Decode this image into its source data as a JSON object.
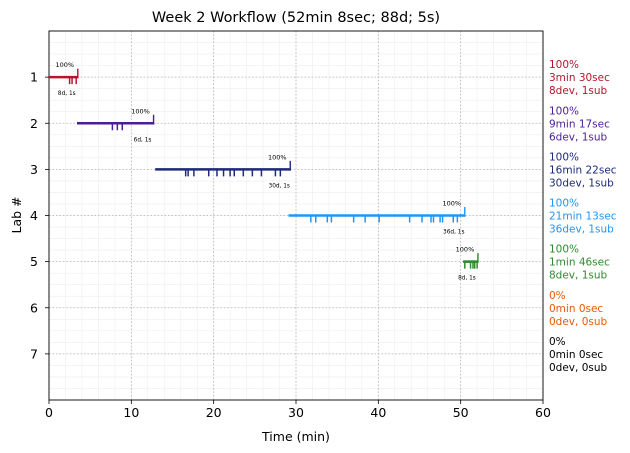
{
  "chart_data": {
    "type": "timeline",
    "title": "Week 2 Workflow (52min 8sec; 88d; 5s)",
    "xlabel": "Time (min)",
    "ylabel": "Lab #",
    "xlim": [
      0,
      60
    ],
    "ylim": [
      8,
      0
    ],
    "xticks": [
      0,
      10,
      20,
      30,
      40,
      50,
      60
    ],
    "yticks": [
      1,
      2,
      3,
      4,
      5,
      6,
      7
    ],
    "grid": true,
    "minor_grid": true,
    "labs": [
      {
        "lab": 1,
        "color": "#b2182b",
        "start": 0,
        "end": 3.5,
        "dev_times": [
          2.5,
          2.8,
          3.3
        ],
        "percent_label": "100%",
        "count_label": "8d, 1s",
        "summary": [
          "100%",
          "3min 30sec",
          "8dev, 1sub"
        ]
      },
      {
        "lab": 2,
        "color": "#4b1f91",
        "start": 3.4,
        "end": 12.7,
        "dev_times": [
          7.7,
          8.3,
          8.9
        ],
        "percent_label": "100%",
        "count_label": "6d, 1s",
        "summary": [
          "100%",
          "9min 17sec",
          "6dev, 1sub"
        ]
      },
      {
        "lab": 3,
        "color": "#1f2a7a",
        "start": 12.9,
        "end": 29.3,
        "dev_times": [
          16.6,
          16.9,
          17.6,
          19.4,
          20.4,
          21.2,
          22.0,
          22.5,
          23.6,
          24.7,
          25.8,
          27.5,
          28.1
        ],
        "percent_label": "100%",
        "count_label": "30d, 1s",
        "summary": [
          "100%",
          "16min 22sec",
          "30dev, 1sub"
        ]
      },
      {
        "lab": 4,
        "color": "#2196f3",
        "start": 29.1,
        "end": 50.5,
        "dev_times": [
          31.8,
          32.4,
          33.8,
          34.3,
          37.0,
          38.4,
          40.1,
          43.8,
          45.3,
          46.4,
          46.7,
          47.5,
          47.8,
          49.1,
          49.6
        ],
        "percent_label": "100%",
        "count_label": "36d, 1s",
        "summary": [
          "100%",
          "21min 13sec",
          "36dev, 1sub"
        ]
      },
      {
        "lab": 5,
        "color": "#2e8b2e",
        "start": 50.3,
        "end": 52.1,
        "dev_times": [
          50.5,
          51.2,
          51.5,
          51.7,
          52.0
        ],
        "percent_label": "100%",
        "count_label": "8d, 1s",
        "summary": [
          "100%",
          "1min 46sec",
          "8dev, 1sub"
        ]
      },
      {
        "lab": 6,
        "color": "#e8590c",
        "summary": [
          "0%",
          "0min 0sec",
          "0dev, 0sub"
        ]
      },
      {
        "lab": 7,
        "color": "#000000",
        "summary": [
          "0%",
          "0min 0sec",
          "0dev, 0sub"
        ]
      }
    ]
  }
}
